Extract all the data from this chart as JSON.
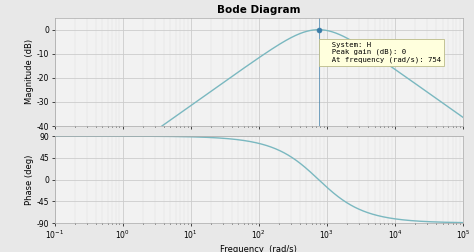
{
  "title": "Bode Diagram",
  "xlabel": "Frequency  (rad/s)",
  "ylabel_mag": "Magnitude (dB)",
  "ylabel_phase": "Phase (deg)",
  "omega_0": 754,
  "freq_range": [
    0.1,
    100000
  ],
  "mag_ylim": [
    -40,
    5
  ],
  "mag_yticks": [
    0,
    -10,
    -20,
    -30,
    -40
  ],
  "phase_ylim": [
    -90,
    90
  ],
  "phase_yticks": [
    90,
    45,
    0,
    -45,
    -90
  ],
  "annotation_text": "  System: H\n  Peak gain (dB): 0\n  At frequency (rad/s): 754",
  "annotation_freq": 754,
  "line_color": "#7ab8c0",
  "bg_color": "#e8e8e8",
  "plot_bg": "#f2f2f2",
  "annotation_bg": "#ffffdd",
  "grid_color": "#cccccc",
  "marker_color": "#3a7ca8"
}
